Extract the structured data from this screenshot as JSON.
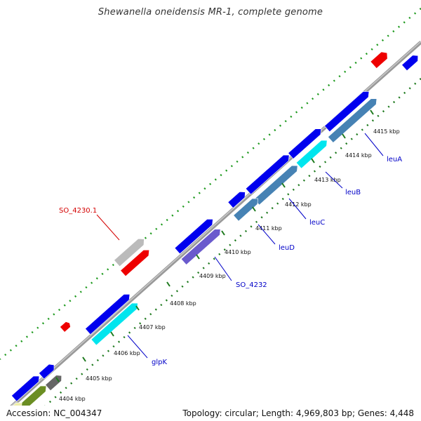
{
  "title": "Shewanella oneidensis MR-1, complete genome",
  "footer": {
    "accession": "Accession: NC_004347",
    "summary": "Topology: circular; Length: 4,969,803 bp; Genes: 4,448"
  },
  "ticks": [
    {
      "label": "4404 kbp"
    },
    {
      "label": "4405 kbp"
    },
    {
      "label": "4406 kbp"
    },
    {
      "label": "4407 kbp"
    },
    {
      "label": "4408 kbp"
    },
    {
      "label": "4409 kbp"
    },
    {
      "label": "4410 kbp"
    },
    {
      "label": "4411 kbp"
    },
    {
      "label": "4412 kbp"
    },
    {
      "label": "4413 kbp"
    },
    {
      "label": "4414 kbp"
    },
    {
      "label": "4415 kbp"
    }
  ],
  "gene_labels": [
    {
      "text": "SO_4230.1",
      "color": "#d40000"
    },
    {
      "text": "glpK",
      "color": "#0000c8"
    },
    {
      "text": "SO_4232",
      "color": "#0000c8"
    },
    {
      "text": "leuD",
      "color": "#0000c8"
    },
    {
      "text": "leuC",
      "color": "#0000c8"
    },
    {
      "text": "leuB",
      "color": "#0000c8"
    },
    {
      "text": "leuA",
      "color": "#0000c8"
    }
  ],
  "colors": {
    "backbone": "#999999",
    "forward_cds": "#0000ee",
    "reverse_cds": "#4682b4",
    "cyan_cds": "#00e5ee",
    "purple_cds": "#6a5acd",
    "rna": "#ee0000",
    "gray_feature": "#bbbbbb",
    "olive_feature": "#6b8e23",
    "darkgray_feature": "#666666",
    "outer_dots": "#1e9a1e",
    "inner_dots": "#1e7a1e"
  }
}
